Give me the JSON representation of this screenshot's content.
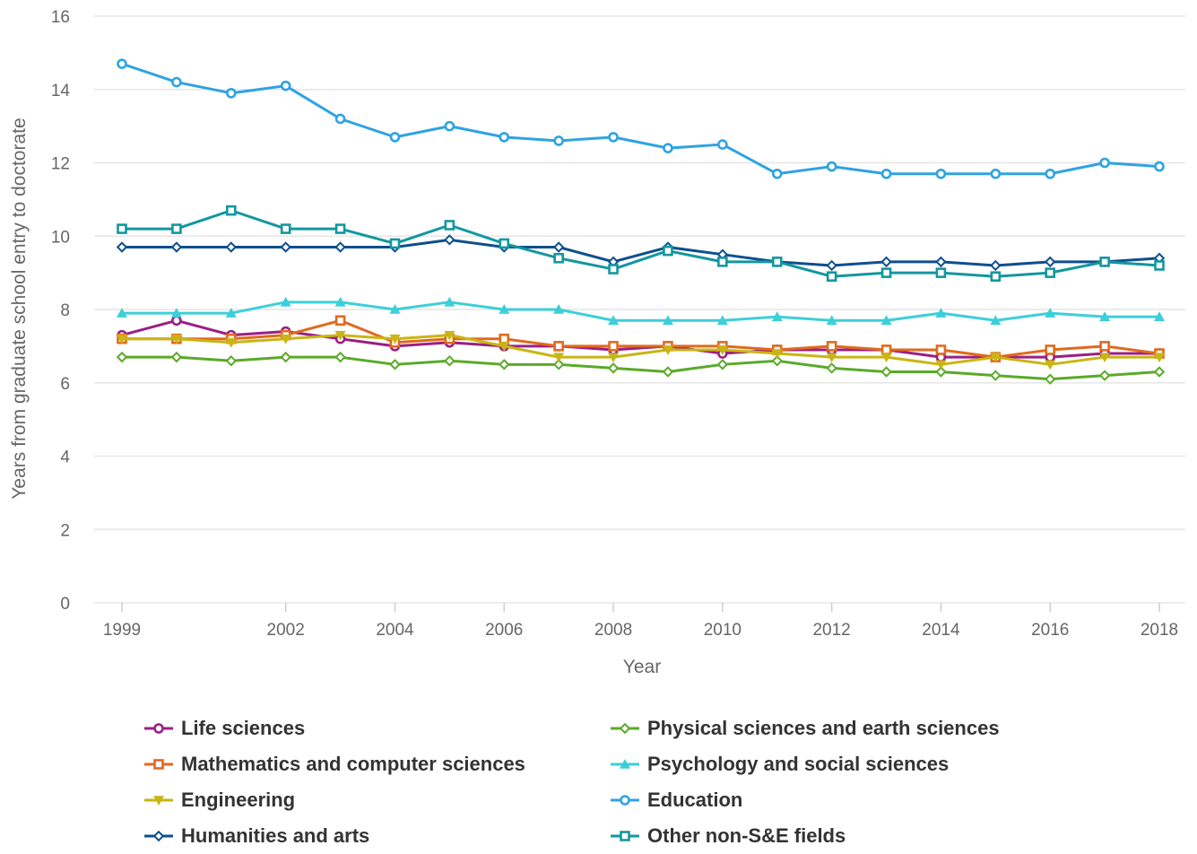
{
  "chart_data": {
    "type": "line",
    "title": "",
    "xlabel": "Year",
    "ylabel": "Years from graduate school entry to doctorate",
    "xlim": [
      1999,
      2018
    ],
    "ylim": [
      0,
      16
    ],
    "x_ticks": [
      "1999",
      "2002",
      "2004",
      "2006",
      "2008",
      "2010",
      "2012",
      "2014",
      "2016",
      "2018"
    ],
    "y_ticks": [
      "0",
      "2",
      "4",
      "6",
      "8",
      "10",
      "12",
      "14",
      "16"
    ],
    "grid": true,
    "legend_position": "bottom",
    "x": [
      1999,
      2000,
      2001,
      2002,
      2003,
      2004,
      2005,
      2006,
      2007,
      2008,
      2009,
      2010,
      2011,
      2012,
      2013,
      2014,
      2015,
      2016,
      2017,
      2018
    ],
    "series": [
      {
        "name": "Life sciences",
        "color": "#9b1f84",
        "marker": "circle",
        "values": [
          7.3,
          7.7,
          7.3,
          7.4,
          7.2,
          7.0,
          7.1,
          7.0,
          7.0,
          6.9,
          7.0,
          6.8,
          6.9,
          6.9,
          6.9,
          6.7,
          6.7,
          6.7,
          6.8,
          6.8
        ]
      },
      {
        "name": "Physical sciences and earth sciences",
        "color": "#5aaa28",
        "marker": "diamond",
        "values": [
          6.7,
          6.7,
          6.6,
          6.7,
          6.7,
          6.5,
          6.6,
          6.5,
          6.5,
          6.4,
          6.3,
          6.5,
          6.6,
          6.4,
          6.3,
          6.3,
          6.2,
          6.1,
          6.2,
          6.3
        ]
      },
      {
        "name": "Mathematics and computer sciences",
        "color": "#e06a1e",
        "marker": "square",
        "values": [
          7.2,
          7.2,
          7.2,
          7.3,
          7.7,
          7.1,
          7.2,
          7.2,
          7.0,
          7.0,
          7.0,
          7.0,
          6.9,
          7.0,
          6.9,
          6.9,
          6.7,
          6.9,
          7.0,
          6.8
        ]
      },
      {
        "name": "Psychology and social sciences",
        "color": "#3ccfd9",
        "marker": "triangle-up",
        "values": [
          7.9,
          7.9,
          7.9,
          8.2,
          8.2,
          8.0,
          8.2,
          8.0,
          8.0,
          7.7,
          7.7,
          7.7,
          7.8,
          7.7,
          7.7,
          7.9,
          7.7,
          7.9,
          7.8,
          7.8
        ]
      },
      {
        "name": "Engineering",
        "color": "#c9b514",
        "marker": "triangle-down",
        "values": [
          7.2,
          7.2,
          7.1,
          7.2,
          7.3,
          7.2,
          7.3,
          7.0,
          6.7,
          6.7,
          6.9,
          6.9,
          6.8,
          6.7,
          6.7,
          6.5,
          6.7,
          6.5,
          6.7,
          6.7
        ]
      },
      {
        "name": "Education",
        "color": "#2ea3e3",
        "marker": "circle",
        "values": [
          14.7,
          14.2,
          13.9,
          14.1,
          13.2,
          12.7,
          13.0,
          12.7,
          12.6,
          12.7,
          12.4,
          12.5,
          11.7,
          11.9,
          11.7,
          11.7,
          11.7,
          11.7,
          12.0,
          11.9
        ]
      },
      {
        "name": "Humanities and arts",
        "color": "#0e4f8e",
        "marker": "diamond",
        "values": [
          9.7,
          9.7,
          9.7,
          9.7,
          9.7,
          9.7,
          9.9,
          9.7,
          9.7,
          9.3,
          9.7,
          9.5,
          9.3,
          9.2,
          9.3,
          9.3,
          9.2,
          9.3,
          9.3,
          9.4
        ]
      },
      {
        "name": "Other non-S&E fields",
        "color": "#13979f",
        "marker": "square",
        "values": [
          10.2,
          10.2,
          10.7,
          10.2,
          10.2,
          9.8,
          10.3,
          9.8,
          9.4,
          9.1,
          9.6,
          9.3,
          9.3,
          8.9,
          9.0,
          9.0,
          8.9,
          9.0,
          9.3,
          9.2
        ]
      }
    ]
  }
}
